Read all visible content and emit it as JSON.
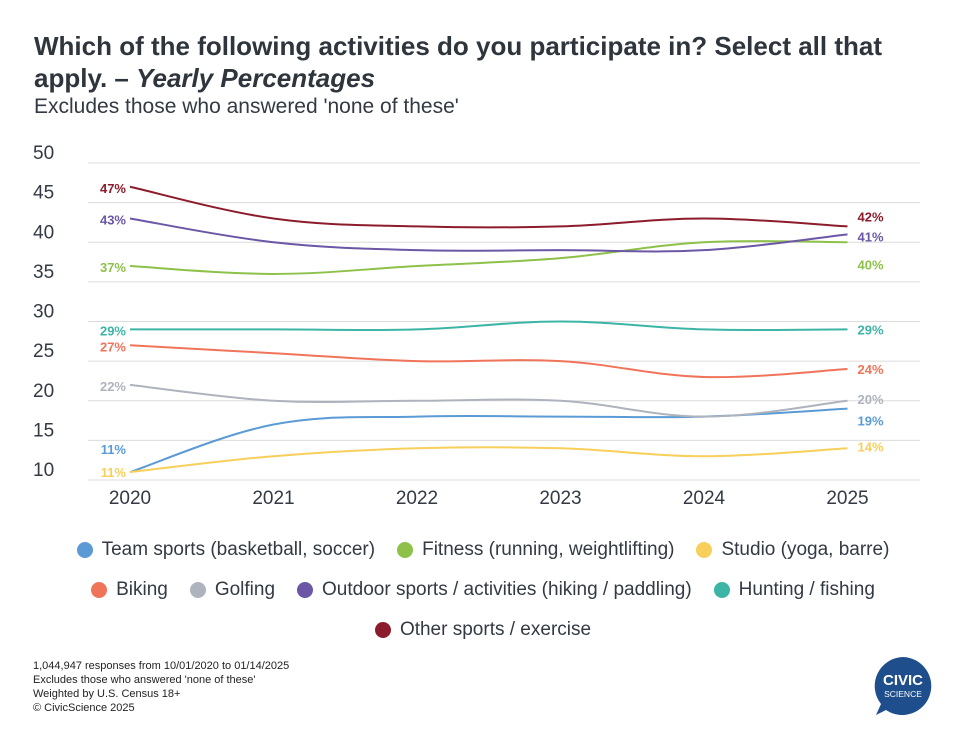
{
  "header": {
    "title_main": "Which of the following activities do you participate in? Select all that apply. – ",
    "title_italic": "Yearly Percentages",
    "subtitle": "Excludes those who answered 'none of these'"
  },
  "chart_data": {
    "type": "line",
    "title": "Which of the following activities do you participate in? Select all that apply. – Yearly Percentages",
    "subtitle": "Excludes those who answered 'none of these'",
    "x": [
      "2020",
      "2021",
      "2022",
      "2023",
      "2024",
      "2025"
    ],
    "ylim": [
      10,
      50
    ],
    "yticks": [
      10,
      15,
      20,
      25,
      30,
      35,
      40,
      45,
      50
    ],
    "grid": true,
    "legend_position": "bottom",
    "series": [
      {
        "name": "Team sports (basketball, soccer)",
        "color": "#5b9bd5",
        "values": [
          11,
          17,
          18,
          18,
          18,
          19
        ],
        "start_label": "11%",
        "end_label": "19%"
      },
      {
        "name": "Fitness (running, weightlifting)",
        "color": "#8dc149",
        "values": [
          37,
          36,
          37,
          38,
          40,
          40
        ],
        "start_label": "37%",
        "end_label": "40%"
      },
      {
        "name": "Studio (yoga, barre)",
        "color": "#f7cf5a",
        "values": [
          11,
          13,
          14,
          14,
          13,
          14
        ],
        "start_label": "11%",
        "end_label": "14%"
      },
      {
        "name": "Biking",
        "color": "#f0745a",
        "values": [
          27,
          26,
          25,
          25,
          23,
          24
        ],
        "start_label": "27%",
        "end_label": "24%"
      },
      {
        "name": "Golfing",
        "color": "#aeb3bd",
        "values": [
          22,
          20,
          20,
          20,
          18,
          20
        ],
        "start_label": "22%",
        "end_label": "20%"
      },
      {
        "name": "Outdoor sports / activities (hiking / paddling)",
        "color": "#6b57a5",
        "values": [
          43,
          40,
          39,
          39,
          39,
          41
        ],
        "start_label": "43%",
        "end_label": "41%"
      },
      {
        "name": "Hunting / fishing",
        "color": "#3db5a6",
        "values": [
          29,
          29,
          29,
          30,
          29,
          29
        ],
        "start_label": "29%",
        "end_label": "29%"
      },
      {
        "name": "Other sports / exercise",
        "color": "#8c1c2c",
        "values": [
          47,
          43,
          42,
          42,
          43,
          42
        ],
        "start_label": "47%",
        "end_label": "42%"
      }
    ]
  },
  "legend_rows": [
    [
      0,
      1,
      2
    ],
    [
      3,
      4,
      5,
      6
    ],
    [
      7
    ]
  ],
  "footnotes": [
    "1,044,947 responses from 10/01/2020 to 01/14/2025",
    "Excludes those who answered 'none of these'",
    "Weighted by U.S. Census 18+",
    "© CivicScience 2025"
  ],
  "logo": {
    "line1": "CIVIC",
    "line2": "SCIENCE",
    "color": "#1f4e8c"
  }
}
